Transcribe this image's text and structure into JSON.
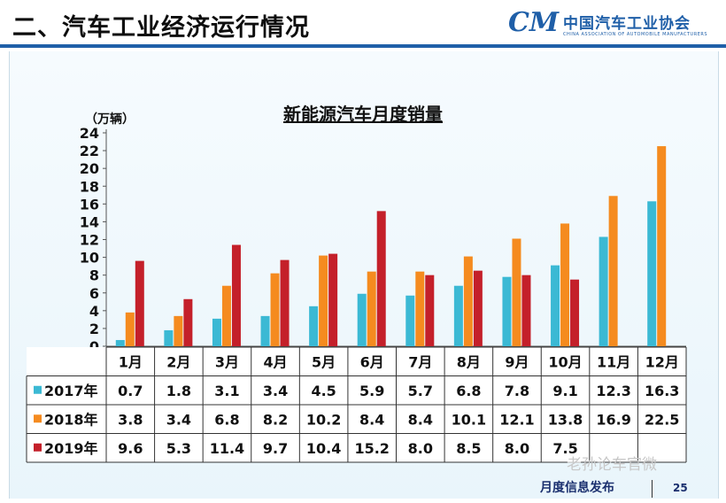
{
  "page": {
    "title": "二、汽车工业经济运行情况",
    "logo_mark": "CM",
    "logo_name": "中国汽车工业协会",
    "logo_en": "CHINA ASSOCIATION OF AUTOMOBILE MANUFACTURERS",
    "footer": "月度信息发布",
    "page_number": "25",
    "watermark": "老孙论车官微"
  },
  "colors": {
    "header_line": "#1f5fa8",
    "series_2017": "#3bb9d4",
    "series_2018": "#f58b1f",
    "series_2019": "#c4202a"
  },
  "chart_data": {
    "type": "bar",
    "title": "新能源汽车月度销量",
    "ylabel": "（万辆）",
    "ylim": [
      0,
      24
    ],
    "yticks": [
      0,
      2,
      4,
      6,
      8,
      10,
      12,
      14,
      16,
      18,
      20,
      22,
      24
    ],
    "grid": false,
    "categories": [
      "1月",
      "2月",
      "3月",
      "4月",
      "5月",
      "6月",
      "7月",
      "8月",
      "9月",
      "10月",
      "11月",
      "12月"
    ],
    "series": [
      {
        "name": "2017年",
        "color": "#3bb9d4",
        "values": [
          0.7,
          1.8,
          3.1,
          3.4,
          4.5,
          5.9,
          5.7,
          6.8,
          7.8,
          9.1,
          12.3,
          16.3
        ],
        "labels": [
          "0.7",
          "1.8",
          "3.1",
          "3.4",
          "4.5",
          "5.9",
          "5.7",
          "6.8",
          "7.8",
          "9.1",
          "12.3",
          "16.3"
        ]
      },
      {
        "name": "2018年",
        "color": "#f58b1f",
        "values": [
          3.8,
          3.4,
          6.8,
          8.2,
          10.2,
          8.4,
          8.4,
          10.1,
          12.1,
          13.8,
          16.9,
          22.5
        ],
        "labels": [
          "3.8",
          "3.4",
          "6.8",
          "8.2",
          "10.2",
          "8.4",
          "8.4",
          "10.1",
          "12.1",
          "13.8",
          "16.9",
          "22.5"
        ]
      },
      {
        "name": "2019年",
        "color": "#c4202a",
        "values": [
          9.6,
          5.3,
          11.4,
          9.7,
          10.4,
          15.2,
          8.0,
          8.5,
          8.0,
          7.5,
          null,
          null
        ],
        "labels": [
          "9.6",
          "5.3",
          "11.4",
          "9.7",
          "10.4",
          "15.2",
          "8.0",
          "8.5",
          "8.0",
          "7.5",
          "",
          ""
        ]
      }
    ]
  }
}
